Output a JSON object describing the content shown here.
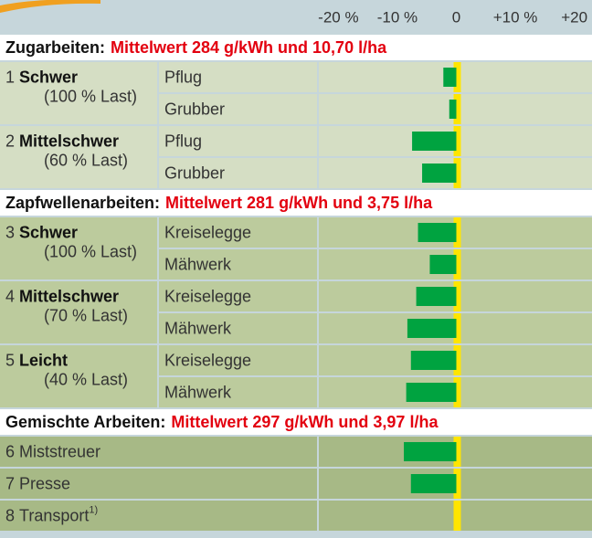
{
  "chart_data": {
    "type": "bar",
    "orientation": "horizontal",
    "color": "#00a340",
    "zero_line_color": "#ffe500",
    "xlim": [
      -23,
      23
    ],
    "xticks": [
      {
        "value": -20,
        "label": "-20 %"
      },
      {
        "value": -10,
        "label": "-10 %"
      },
      0,
      {
        "value": 10,
        "label": "+10 %"
      },
      {
        "value": 20,
        "label": "+20"
      }
    ],
    "sections": [
      {
        "label": "Zugarbeiten:",
        "mean": "Mittelwert 284 g/kWh und 10,70 l/ha",
        "color": "#d5dec4",
        "groups": [
          {
            "number": "1",
            "name": "Schwer",
            "load": "(100 % Last)",
            "rows": [
              {
                "label": "Pflug",
                "value": -2.2
              },
              {
                "label": "Grubber",
                "value": -1.2
              }
            ]
          },
          {
            "number": "2",
            "name": "Mittelschwer",
            "load": "(60 % Last)",
            "rows": [
              {
                "label": "Pflug",
                "value": -7.5
              },
              {
                "label": "Grubber",
                "value": -5.8
              }
            ]
          }
        ]
      },
      {
        "label": "Zapfwellenarbeiten:",
        "mean": "Mittelwert 281 g/kWh und 3,75 l/ha",
        "color": "#bccb9d",
        "groups": [
          {
            "number": "3",
            "name": "Schwer",
            "load": "(100 % Last)",
            "rows": [
              {
                "label": "Kreiselegge",
                "value": -6.5
              },
              {
                "label": "Mähwerk",
                "value": -4.5
              }
            ]
          },
          {
            "number": "4",
            "name": "Mittelschwer",
            "load": "(70 % Last)",
            "rows": [
              {
                "label": "Kreiselegge",
                "value": -6.8
              },
              {
                "label": "Mähwerk",
                "value": -8.3
              }
            ]
          },
          {
            "number": "5",
            "name": "Leicht",
            "load": "(40 % Last)",
            "rows": [
              {
                "label": "Kreiselegge",
                "value": -7.7
              },
              {
                "label": "Mähwerk",
                "value": -8.5
              }
            ]
          }
        ]
      },
      {
        "label": "Gemischte Arbeiten:",
        "mean": "Mittelwert 297 g/kWh und 3,97 l/ha",
        "color": "#a7b986",
        "groups": [
          {
            "number": "6",
            "name": "Miststreuer",
            "value": -8.9
          },
          {
            "number": "7",
            "name": "Presse",
            "value": -7.7
          },
          {
            "number": "8",
            "name": "Transport",
            "note": "1)",
            "value": null
          }
        ]
      }
    ]
  }
}
